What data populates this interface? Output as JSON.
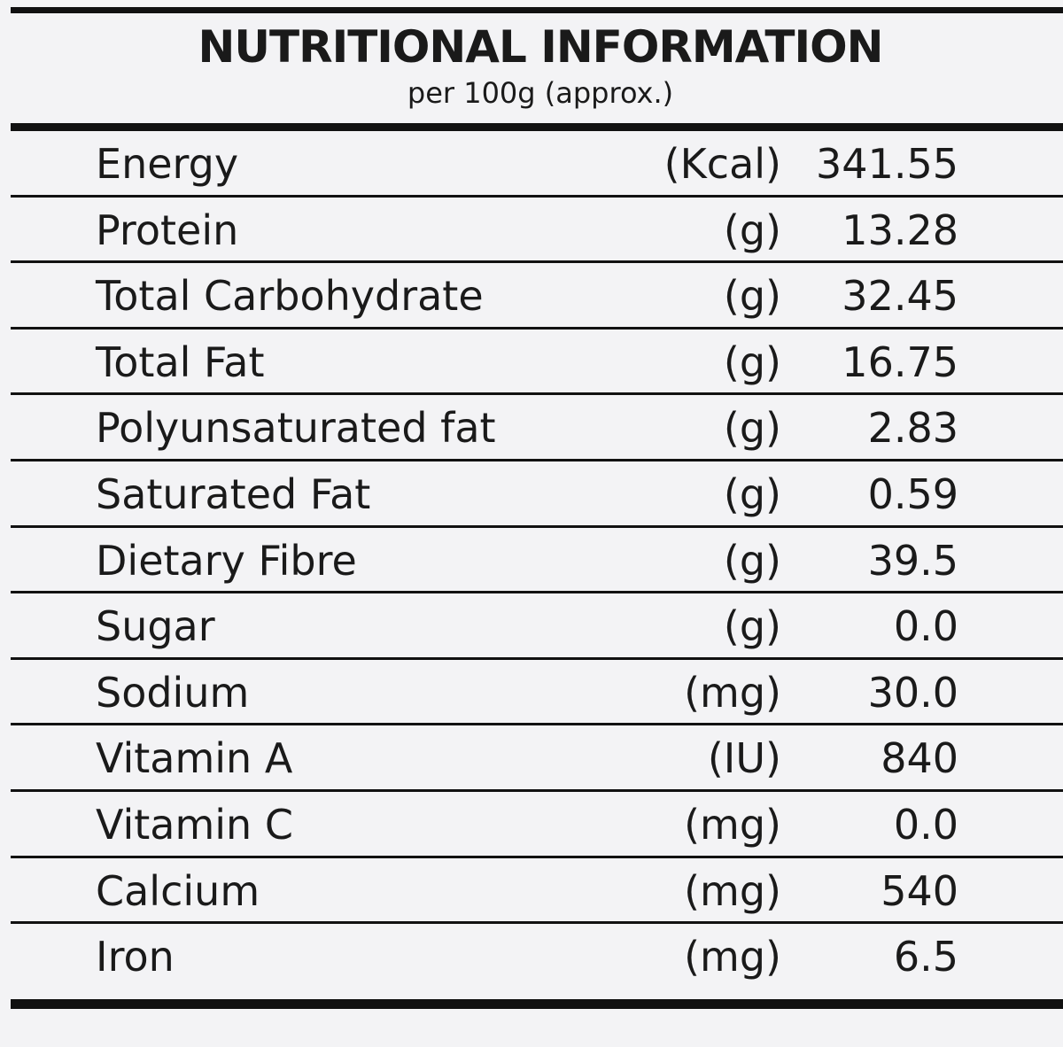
{
  "header": {
    "title": "NUTRITIONAL INFORMATION",
    "subtitle": "per 100g (approx.)"
  },
  "table": {
    "rows": [
      [
        "Energy",
        "(Kcal)",
        "341.55"
      ],
      [
        "Protein",
        "(g)",
        "13.28"
      ],
      [
        "Total Carbohydrate",
        "(g)",
        "32.45"
      ],
      [
        "Total Fat",
        "(g)",
        "16.75"
      ],
      [
        "Polyunsaturated fat",
        "(g)",
        "2.83"
      ],
      [
        "Saturated Fat",
        "(g)",
        "0.59"
      ],
      [
        "Dietary Fibre",
        "(g)",
        "39.5"
      ],
      [
        "Sugar",
        "(g)",
        "0.0"
      ],
      [
        "Sodium",
        "(mg)",
        "30.0"
      ],
      [
        "Vitamin A",
        "(IU)",
        "840"
      ],
      [
        "Vitamin C",
        "(mg)",
        "0.0"
      ],
      [
        "Calcium",
        "(mg)",
        "540"
      ],
      [
        "Iron",
        "(mg)",
        "6.5"
      ]
    ]
  }
}
